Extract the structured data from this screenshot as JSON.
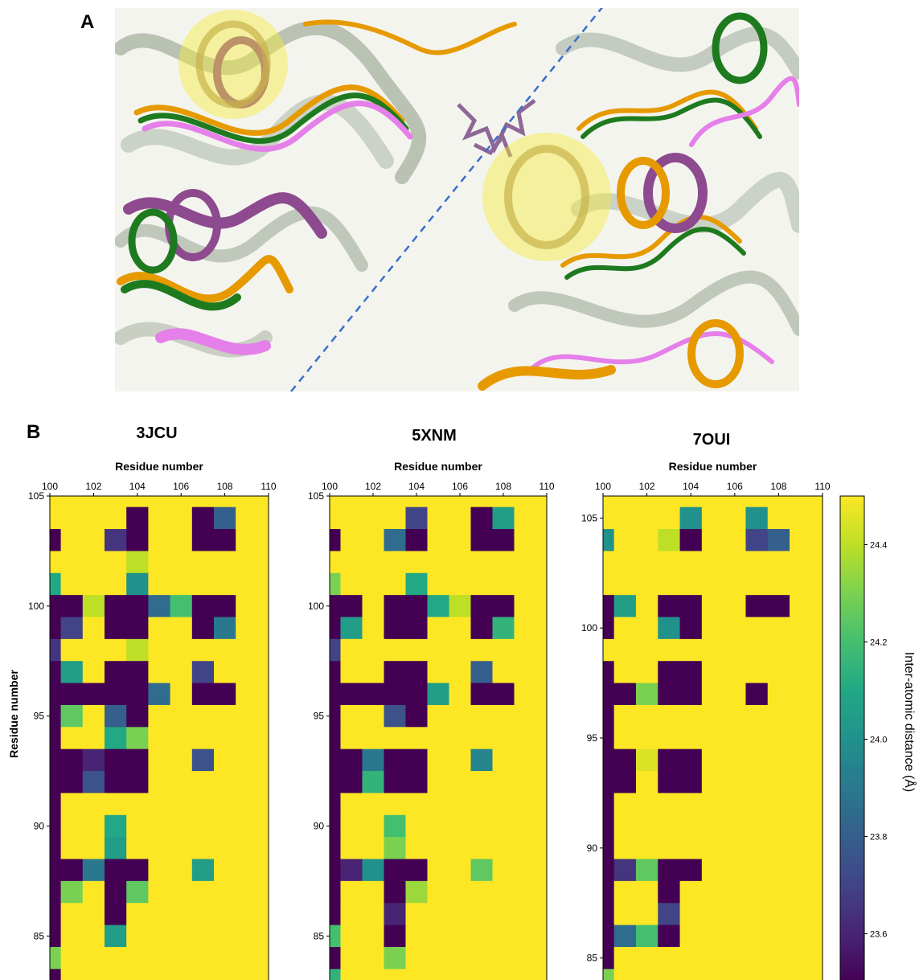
{
  "panel_labels": [
    "A",
    "B"
  ],
  "colorbar": {
    "label": "Inter-atomic distance (Å)",
    "clim": [
      23.5,
      24.5
    ],
    "ticks": [
      23.6,
      23.8,
      24.0,
      24.2,
      24.4
    ],
    "colormap": "viridis"
  },
  "chart_data": [
    {
      "type": "heatmap",
      "title": "3JCU",
      "xlabel": "Residue number",
      "ylabel": "Residue number",
      "x": [
        100,
        101,
        102,
        103,
        104,
        105,
        106,
        107,
        108,
        109,
        110
      ],
      "y": [
        105,
        104,
        103,
        102,
        101,
        100,
        99,
        98,
        97,
        96,
        95,
        94,
        93,
        92,
        91,
        90,
        89,
        88,
        87,
        86,
        85,
        84,
        83
      ],
      "xlim": [
        100,
        110
      ],
      "ylim": [
        83,
        105
      ],
      "xticks": [
        100,
        102,
        104,
        106,
        108,
        110
      ],
      "yticks": [
        85,
        90,
        95,
        100,
        105
      ],
      "values": [
        [
          24.5,
          24.5,
          24.5,
          24.5,
          24.5,
          24.5,
          24.5,
          24.5,
          24.5,
          24.5,
          24.5
        ],
        [
          24.5,
          24.5,
          24.5,
          24.5,
          23.5,
          24.5,
          24.5,
          23.5,
          23.8,
          24.5,
          24.5
        ],
        [
          23.5,
          24.5,
          24.5,
          23.65,
          23.5,
          24.5,
          24.5,
          23.5,
          23.5,
          24.5,
          24.5
        ],
        [
          24.5,
          24.5,
          24.5,
          24.5,
          24.4,
          24.5,
          24.5,
          24.5,
          24.5,
          24.5,
          24.5
        ],
        [
          24.1,
          24.5,
          24.5,
          24.5,
          24.0,
          24.5,
          24.5,
          24.5,
          24.5,
          24.5,
          24.5
        ],
        [
          23.5,
          23.5,
          24.4,
          23.5,
          23.5,
          23.85,
          24.2,
          23.5,
          23.5,
          24.5,
          24.5
        ],
        [
          23.5,
          23.7,
          24.5,
          23.5,
          23.5,
          24.5,
          24.5,
          23.5,
          23.9,
          24.5,
          24.5
        ],
        [
          23.65,
          24.5,
          24.5,
          24.5,
          24.4,
          24.5,
          24.5,
          24.5,
          24.5,
          24.5,
          24.5
        ],
        [
          23.5,
          24.05,
          24.5,
          23.5,
          23.5,
          24.5,
          24.5,
          23.7,
          24.5,
          24.5,
          24.5
        ],
        [
          23.5,
          23.5,
          23.5,
          23.5,
          23.5,
          23.85,
          24.5,
          23.5,
          23.5,
          24.5,
          24.5
        ],
        [
          23.5,
          24.25,
          24.5,
          23.8,
          23.5,
          24.5,
          24.5,
          24.5,
          24.5,
          24.5,
          24.5
        ],
        [
          23.5,
          24.5,
          24.5,
          24.1,
          24.3,
          24.5,
          24.5,
          24.5,
          24.5,
          24.5,
          24.5
        ],
        [
          23.5,
          23.5,
          23.6,
          23.5,
          23.5,
          24.5,
          24.5,
          23.75,
          24.5,
          24.5,
          24.5
        ],
        [
          23.5,
          23.5,
          23.75,
          23.5,
          23.5,
          24.5,
          24.5,
          24.5,
          24.5,
          24.5,
          24.5
        ],
        [
          23.5,
          24.5,
          24.5,
          24.5,
          24.5,
          24.5,
          24.5,
          24.5,
          24.5,
          24.5,
          24.5
        ],
        [
          23.5,
          24.5,
          24.5,
          24.1,
          24.5,
          24.5,
          24.5,
          24.5,
          24.5,
          24.5,
          24.5
        ],
        [
          23.5,
          24.5,
          24.5,
          24.05,
          24.5,
          24.5,
          24.5,
          24.5,
          24.5,
          24.5,
          24.5
        ],
        [
          23.5,
          23.5,
          23.9,
          23.5,
          23.5,
          24.5,
          24.5,
          24.05,
          24.5,
          24.5,
          24.5
        ],
        [
          23.5,
          24.3,
          24.5,
          23.5,
          24.25,
          24.5,
          24.5,
          24.5,
          24.5,
          24.5,
          24.5
        ],
        [
          23.5,
          24.5,
          24.5,
          23.5,
          24.5,
          24.5,
          24.5,
          24.5,
          24.5,
          24.5,
          24.5
        ],
        [
          23.5,
          24.5,
          24.5,
          24.05,
          24.5,
          24.5,
          24.5,
          24.5,
          24.5,
          24.5,
          24.5
        ],
        [
          24.3,
          24.5,
          24.5,
          24.5,
          24.5,
          24.5,
          24.5,
          24.5,
          24.5,
          24.5,
          24.5
        ],
        [
          23.5,
          24.5,
          24.5,
          24.5,
          24.5,
          24.5,
          24.5,
          24.5,
          24.5,
          24.5,
          24.5
        ]
      ]
    },
    {
      "type": "heatmap",
      "title": "5XNM",
      "xlabel": "Residue number",
      "x": [
        100,
        101,
        102,
        103,
        104,
        105,
        106,
        107,
        108,
        109,
        110
      ],
      "y": [
        105,
        104,
        103,
        102,
        101,
        100,
        99,
        98,
        97,
        96,
        95,
        94,
        93,
        92,
        91,
        90,
        89,
        88,
        87,
        86,
        85,
        84,
        83
      ],
      "xlim": [
        100,
        110
      ],
      "ylim": [
        83,
        105
      ],
      "xticks": [
        100,
        102,
        104,
        106,
        108,
        110
      ],
      "yticks": [
        85,
        90,
        95,
        100,
        105
      ],
      "values": [
        [
          24.5,
          24.5,
          24.5,
          24.5,
          24.5,
          24.5,
          24.5,
          24.5,
          24.5,
          24.5,
          24.5
        ],
        [
          24.5,
          24.5,
          24.5,
          24.5,
          23.7,
          24.5,
          24.5,
          23.5,
          24.05,
          24.5,
          24.5
        ],
        [
          23.5,
          24.5,
          24.5,
          23.85,
          23.5,
          24.5,
          24.5,
          23.5,
          23.5,
          24.5,
          24.5
        ],
        [
          24.5,
          24.5,
          24.5,
          24.5,
          24.5,
          24.5,
          24.5,
          24.5,
          24.5,
          24.5,
          24.5
        ],
        [
          24.3,
          24.5,
          24.5,
          24.5,
          24.1,
          24.5,
          24.5,
          24.5,
          24.5,
          24.5,
          24.5
        ],
        [
          23.5,
          23.5,
          24.5,
          23.5,
          23.5,
          24.1,
          24.4,
          23.5,
          23.5,
          24.5,
          24.5
        ],
        [
          23.5,
          24.05,
          24.5,
          23.5,
          23.5,
          24.5,
          24.5,
          23.5,
          24.15,
          24.5,
          24.5
        ],
        [
          23.7,
          24.5,
          24.5,
          24.5,
          24.5,
          24.5,
          24.5,
          24.5,
          24.5,
          24.5,
          24.5
        ],
        [
          23.5,
          24.5,
          24.5,
          23.5,
          23.5,
          24.5,
          24.5,
          23.8,
          24.5,
          24.5,
          24.5
        ],
        [
          23.5,
          23.5,
          23.5,
          23.5,
          23.5,
          24.05,
          24.5,
          23.5,
          23.5,
          24.5,
          24.5
        ],
        [
          23.5,
          24.5,
          24.5,
          23.75,
          23.5,
          24.5,
          24.5,
          24.5,
          24.5,
          24.5,
          24.5
        ],
        [
          23.5,
          24.5,
          24.5,
          24.5,
          24.5,
          24.5,
          24.5,
          24.5,
          24.5,
          24.5,
          24.5
        ],
        [
          23.5,
          23.5,
          23.9,
          23.5,
          23.5,
          24.5,
          24.5,
          23.95,
          24.5,
          24.5,
          24.5
        ],
        [
          23.5,
          23.5,
          24.15,
          23.5,
          23.5,
          24.5,
          24.5,
          24.5,
          24.5,
          24.5,
          24.5
        ],
        [
          23.5,
          24.5,
          24.5,
          24.5,
          24.5,
          24.5,
          24.5,
          24.5,
          24.5,
          24.5,
          24.5
        ],
        [
          23.5,
          24.5,
          24.5,
          24.2,
          24.5,
          24.5,
          24.5,
          24.5,
          24.5,
          24.5,
          24.5
        ],
        [
          23.5,
          24.5,
          24.5,
          24.3,
          24.5,
          24.5,
          24.5,
          24.5,
          24.5,
          24.5,
          24.5
        ],
        [
          23.5,
          23.6,
          24.0,
          23.5,
          23.5,
          24.5,
          24.5,
          24.25,
          24.5,
          24.5,
          24.5
        ],
        [
          23.5,
          24.5,
          24.5,
          23.5,
          24.35,
          24.5,
          24.5,
          24.5,
          24.5,
          24.5,
          24.5
        ],
        [
          23.5,
          24.5,
          24.5,
          23.6,
          24.5,
          24.5,
          24.5,
          24.5,
          24.5,
          24.5,
          24.5
        ],
        [
          24.2,
          24.5,
          24.5,
          23.5,
          24.5,
          24.5,
          24.5,
          24.5,
          24.5,
          24.5,
          24.5
        ],
        [
          23.5,
          24.5,
          24.5,
          24.3,
          24.5,
          24.5,
          24.5,
          24.5,
          24.5,
          24.5,
          24.5
        ],
        [
          24.15,
          24.5,
          24.5,
          24.5,
          24.5,
          24.5,
          24.5,
          24.5,
          24.5,
          24.5,
          24.5
        ]
      ]
    },
    {
      "type": "heatmap",
      "title": "7OUI",
      "xlabel": "Residue number",
      "x": [
        100,
        101,
        102,
        103,
        104,
        105,
        106,
        107,
        108,
        109,
        110
      ],
      "y": [
        106,
        105,
        104,
        103,
        102,
        101,
        100,
        99,
        98,
        97,
        96,
        95,
        94,
        93,
        92,
        91,
        90,
        89,
        88,
        87,
        86,
        85,
        84
      ],
      "xlim": [
        100,
        110
      ],
      "ylim": [
        84,
        106
      ],
      "xticks": [
        100,
        102,
        104,
        106,
        108,
        110
      ],
      "yticks": [
        85,
        90,
        95,
        100,
        105
      ],
      "values": [
        [
          24.5,
          24.5,
          24.5,
          24.5,
          24.5,
          24.5,
          24.5,
          24.5,
          24.5,
          24.5,
          24.5
        ],
        [
          24.5,
          24.5,
          24.5,
          24.5,
          24.0,
          24.5,
          24.5,
          24.0,
          24.5,
          24.5,
          24.5
        ],
        [
          24.0,
          24.5,
          24.5,
          24.4,
          23.5,
          24.5,
          24.5,
          23.7,
          23.8,
          24.5,
          24.5
        ],
        [
          24.5,
          24.5,
          24.5,
          24.5,
          24.5,
          24.5,
          24.5,
          24.5,
          24.5,
          24.5,
          24.5
        ],
        [
          24.5,
          24.5,
          24.5,
          24.5,
          24.5,
          24.5,
          24.5,
          24.5,
          24.5,
          24.5,
          24.5
        ],
        [
          23.5,
          24.05,
          24.5,
          23.5,
          23.5,
          24.5,
          24.5,
          23.5,
          23.5,
          24.5,
          24.5
        ],
        [
          23.5,
          24.5,
          24.5,
          24.0,
          23.5,
          24.5,
          24.5,
          24.5,
          24.5,
          24.5,
          24.5
        ],
        [
          24.5,
          24.5,
          24.5,
          24.5,
          24.5,
          24.5,
          24.5,
          24.5,
          24.5,
          24.5,
          24.5
        ],
        [
          23.5,
          24.5,
          24.5,
          23.5,
          23.5,
          24.5,
          24.5,
          24.5,
          24.5,
          24.5,
          24.5
        ],
        [
          23.5,
          23.5,
          24.3,
          23.5,
          23.5,
          24.5,
          24.5,
          23.5,
          24.5,
          24.5,
          24.5
        ],
        [
          23.5,
          24.5,
          24.5,
          24.5,
          24.5,
          24.5,
          24.5,
          24.5,
          24.5,
          24.5,
          24.5
        ],
        [
          23.5,
          24.5,
          24.5,
          24.5,
          24.5,
          24.5,
          24.5,
          24.5,
          24.5,
          24.5,
          24.5
        ],
        [
          23.5,
          23.5,
          24.45,
          23.5,
          23.5,
          24.5,
          24.5,
          24.5,
          24.5,
          24.5,
          24.5
        ],
        [
          23.5,
          23.5,
          24.5,
          23.5,
          23.5,
          24.5,
          24.5,
          24.5,
          24.5,
          24.5,
          24.5
        ],
        [
          23.5,
          24.5,
          24.5,
          24.5,
          24.5,
          24.5,
          24.5,
          24.5,
          24.5,
          24.5,
          24.5
        ],
        [
          23.5,
          24.5,
          24.5,
          24.5,
          24.5,
          24.5,
          24.5,
          24.5,
          24.5,
          24.5,
          24.5
        ],
        [
          23.5,
          24.5,
          24.5,
          24.5,
          24.5,
          24.5,
          24.5,
          24.5,
          24.5,
          24.5,
          24.5
        ],
        [
          23.5,
          23.65,
          24.25,
          23.5,
          23.5,
          24.5,
          24.5,
          24.5,
          24.5,
          24.5,
          24.5
        ],
        [
          23.5,
          24.5,
          24.5,
          23.5,
          24.5,
          24.5,
          24.5,
          24.5,
          24.5,
          24.5,
          24.5
        ],
        [
          23.5,
          24.5,
          24.5,
          23.7,
          24.5,
          24.5,
          24.5,
          24.5,
          24.5,
          24.5,
          24.5
        ],
        [
          23.5,
          23.85,
          24.2,
          23.5,
          24.5,
          24.5,
          24.5,
          24.5,
          24.5,
          24.5,
          24.5
        ],
        [
          23.5,
          24.5,
          24.5,
          24.5,
          24.5,
          24.5,
          24.5,
          24.5,
          24.5,
          24.5,
          24.5
        ],
        [
          24.3,
          24.5,
          24.5,
          24.5,
          24.5,
          24.5,
          24.5,
          24.5,
          24.5,
          24.5,
          24.5
        ]
      ]
    }
  ]
}
